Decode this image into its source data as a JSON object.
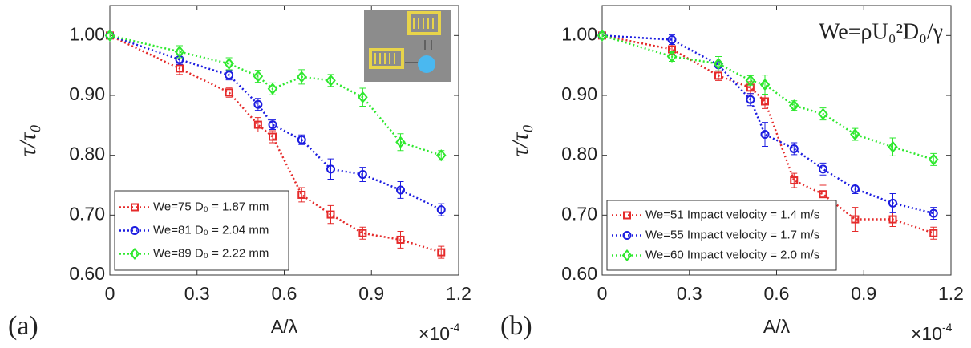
{
  "chart_data": [
    {
      "type": "line",
      "panel_label": "(a)",
      "xlabel": "A/λ",
      "ylabel": "τ/τ₀",
      "x_multiplier": {
        "base": "×10",
        "exponent": "-4"
      },
      "x": [
        0,
        0.24,
        0.41,
        0.51,
        0.56,
        0.66,
        0.76,
        0.87,
        1.0,
        1.14
      ],
      "xlim": [
        0,
        1.2
      ],
      "xticks": [
        0,
        0.3,
        0.6,
        0.9,
        1.2
      ],
      "ylim": [
        0.6,
        1.05
      ],
      "yticks": [
        {
          "value": 0.6,
          "label": "0.60"
        },
        {
          "value": 0.7,
          "label": "0.70"
        },
        {
          "value": 0.8,
          "label": "0.80"
        },
        {
          "value": 0.9,
          "label": "0.90"
        },
        {
          "value": 1.0,
          "label": "1.00"
        }
      ],
      "legend": "lower left",
      "series": [
        {
          "name": "We=75 D₀ = 1.87 mm",
          "color": "#e52a2a",
          "marker": "square",
          "values": [
            1.0,
            0.945,
            0.905,
            0.851,
            0.831,
            0.734,
            0.701,
            0.67,
            0.659,
            0.638
          ],
          "errors": [
            0.005,
            0.01,
            0.008,
            0.012,
            0.01,
            0.012,
            0.015,
            0.01,
            0.014,
            0.01
          ]
        },
        {
          "name": "We=81 D₀ = 2.04 mm",
          "color": "#1c1ce0",
          "marker": "circle",
          "values": [
            1.0,
            0.96,
            0.934,
            0.885,
            0.851,
            0.826,
            0.777,
            0.768,
            0.742,
            0.709
          ],
          "errors": [
            0.005,
            0.008,
            0.008,
            0.01,
            0.008,
            0.008,
            0.017,
            0.012,
            0.014,
            0.01
          ]
        },
        {
          "name": "We=89 D₀ = 2.22 mm",
          "color": "#2ee82e",
          "marker": "diamond",
          "values": [
            1.0,
            0.973,
            0.953,
            0.932,
            0.911,
            0.931,
            0.925,
            0.897,
            0.822,
            0.8
          ],
          "errors": [
            0.005,
            0.01,
            0.01,
            0.01,
            0.01,
            0.012,
            0.01,
            0.015,
            0.014,
            0.008
          ]
        }
      ]
    },
    {
      "type": "line",
      "panel_label": "(b)",
      "xlabel": "A/λ",
      "ylabel": "τ/τ₀",
      "annotation": "We=ρU₀²D₀/γ",
      "x_multiplier": {
        "base": "×10",
        "exponent": "-4"
      },
      "x": [
        0,
        0.24,
        0.4,
        0.51,
        0.56,
        0.66,
        0.76,
        0.87,
        1.0,
        1.14
      ],
      "xlim": [
        0,
        1.2
      ],
      "xticks": [
        0,
        0.3,
        0.6,
        0.9,
        1.2
      ],
      "ylim": [
        0.6,
        1.05
      ],
      "yticks": [
        {
          "value": 0.6,
          "label": "0.60"
        },
        {
          "value": 0.7,
          "label": "0.70"
        },
        {
          "value": 0.8,
          "label": "0.80"
        },
        {
          "value": 0.9,
          "label": "0.90"
        },
        {
          "value": 1.0,
          "label": "1.00"
        }
      ],
      "legend": "lower left",
      "series": [
        {
          "name": "We=51 Impact velocity = 1.4 m/s",
          "color": "#e52a2a",
          "marker": "square",
          "values": [
            1.0,
            0.977,
            0.933,
            0.913,
            0.89,
            0.758,
            0.735,
            0.693,
            0.693,
            0.67
          ],
          "errors": [
            0.005,
            0.008,
            0.008,
            0.01,
            0.012,
            0.012,
            0.015,
            0.02,
            0.012,
            0.01
          ]
        },
        {
          "name": "We=55 Impact velocity = 1.7 m/s",
          "color": "#1c1ce0",
          "marker": "circle",
          "values": [
            1.0,
            0.993,
            0.951,
            0.893,
            0.835,
            0.811,
            0.777,
            0.744,
            0.72,
            0.703
          ],
          "errors": [
            0.005,
            0.008,
            0.01,
            0.01,
            0.02,
            0.01,
            0.01,
            0.008,
            0.016,
            0.01
          ]
        },
        {
          "name": "We=60 Impact velocity = 2.0 m/s",
          "color": "#2ee82e",
          "marker": "diamond",
          "values": [
            1.0,
            0.965,
            0.953,
            0.925,
            0.918,
            0.883,
            0.869,
            0.835,
            0.814,
            0.793
          ],
          "errors": [
            0.005,
            0.008,
            0.012,
            0.008,
            0.016,
            0.008,
            0.01,
            0.01,
            0.015,
            0.01
          ]
        }
      ]
    }
  ]
}
